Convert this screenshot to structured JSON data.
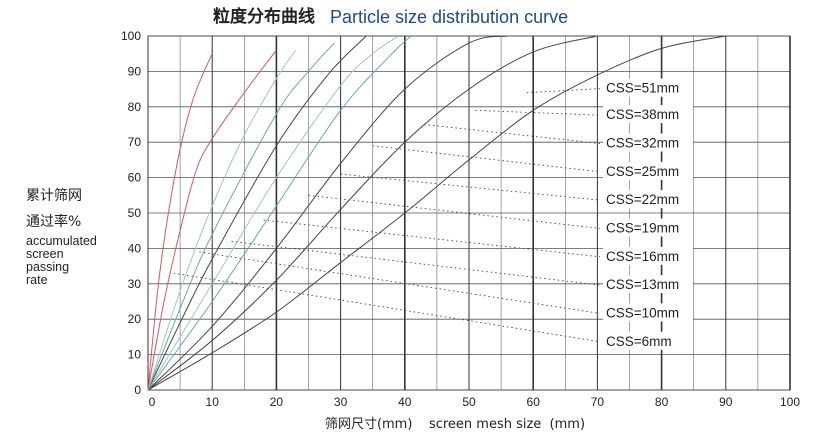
{
  "chart_data": {
    "type": "line",
    "title_cn": "粒度分布曲线",
    "title_en": "Particle size distribution curve",
    "xlabel": "筛网尺寸(mm)    screen mesh size  (mm)",
    "ylabel": {
      "cn_line1": "累计筛网",
      "cn_line2": "通过率%",
      "en_lines": [
        "accumulated",
        "screen",
        "passing",
        "rate"
      ]
    },
    "xlim": [
      0,
      100
    ],
    "ylim": [
      0,
      100
    ],
    "x_ticks": [
      0,
      10,
      20,
      30,
      40,
      50,
      60,
      70,
      80,
      90,
      100
    ],
    "y_ticks": [
      0,
      10,
      20,
      30,
      40,
      50,
      60,
      70,
      80,
      90,
      100
    ],
    "grid_x_minor": [
      5,
      15,
      25,
      35,
      45,
      55,
      65,
      75,
      85,
      95
    ],
    "grid": true,
    "legend_placement": "right, in-plot labels",
    "series": [
      {
        "name": "CSS=51mm",
        "color": "#444444",
        "points": [
          [
            0,
            0
          ],
          [
            10,
            10.5
          ],
          [
            20,
            22
          ],
          [
            30,
            36
          ],
          [
            40,
            50
          ],
          [
            50,
            65
          ],
          [
            60,
            79
          ],
          [
            70,
            89
          ],
          [
            80,
            96.5
          ],
          [
            90,
            100
          ]
        ],
        "label_y": 84,
        "leader_to": [
          59,
          84
        ]
      },
      {
        "name": "CSS=38mm",
        "color": "#444444",
        "points": [
          [
            0,
            0
          ],
          [
            10,
            14
          ],
          [
            20,
            31
          ],
          [
            30,
            51
          ],
          [
            40,
            70
          ],
          [
            50,
            85
          ],
          [
            60,
            95.5
          ],
          [
            70,
            100
          ]
        ],
        "label_y": 76.5,
        "leader_to": [
          51,
          79
        ]
      },
      {
        "name": "CSS=32mm",
        "color": "#444444",
        "points": [
          [
            0,
            0
          ],
          [
            10,
            18
          ],
          [
            20,
            40
          ],
          [
            30,
            64
          ],
          [
            40,
            85
          ],
          [
            50,
            98
          ],
          [
            56,
            100
          ]
        ],
        "label_y": 68.5,
        "leader_to": [
          43,
          75
        ]
      },
      {
        "name": "CSS=25mm",
        "color": "#6aa3b8",
        "points": [
          [
            0,
            0
          ],
          [
            10,
            25
          ],
          [
            20,
            52
          ],
          [
            30,
            79
          ],
          [
            38,
            95
          ],
          [
            41,
            100
          ]
        ],
        "label_y": 60.5,
        "leader_to": [
          35,
          69
        ]
      },
      {
        "name": "CSS=22mm",
        "color": "#9cc9b8",
        "points": [
          [
            0,
            0
          ],
          [
            10,
            30
          ],
          [
            20,
            60
          ],
          [
            30,
            86
          ],
          [
            35,
            95
          ],
          [
            39,
            100
          ]
        ],
        "label_y": 52.5,
        "leader_to": [
          30,
          61
        ]
      },
      {
        "name": "CSS=19mm",
        "color": "#444444",
        "points": [
          [
            0,
            0
          ],
          [
            5,
            19
          ],
          [
            10,
            37
          ],
          [
            20,
            69
          ],
          [
            28,
            89
          ],
          [
            34,
            100
          ]
        ],
        "label_y": 44.5,
        "leader_to": [
          25,
          55
        ]
      },
      {
        "name": "CSS=16mm",
        "color": "#6aa3b8",
        "points": [
          [
            0,
            0
          ],
          [
            5,
            23
          ],
          [
            10,
            44
          ],
          [
            20,
            78
          ],
          [
            25,
            90
          ],
          [
            29,
            98
          ]
        ],
        "label_y": 36.5,
        "leader_to": [
          18,
          48
        ]
      },
      {
        "name": "CSS=13mm",
        "color": "#9cc9b8",
        "points": [
          [
            0,
            0
          ],
          [
            5,
            28
          ],
          [
            10,
            52
          ],
          [
            15,
            72
          ],
          [
            20,
            88
          ],
          [
            23,
            96
          ]
        ],
        "label_y": 28.5,
        "leader_to": [
          13,
          42
        ]
      },
      {
        "name": "CSS=10mm",
        "color": "#d9575b",
        "points": [
          [
            0,
            0
          ],
          [
            2.5,
            25
          ],
          [
            5,
            45
          ],
          [
            7.5,
            62
          ],
          [
            10,
            71
          ],
          [
            15,
            84
          ],
          [
            20,
            96
          ]
        ],
        "label_y": 20.5,
        "leader_to": [
          8,
          39
        ]
      },
      {
        "name": "CSS=6mm",
        "color": "#d9575b",
        "points": [
          [
            0,
            0
          ],
          [
            1.5,
            28
          ],
          [
            3,
            48
          ],
          [
            5,
            68
          ],
          [
            7,
            82
          ],
          [
            9,
            91
          ],
          [
            10,
            95
          ]
        ],
        "label_y": 12.5,
        "leader_to": [
          4,
          33
        ]
      }
    ]
  }
}
